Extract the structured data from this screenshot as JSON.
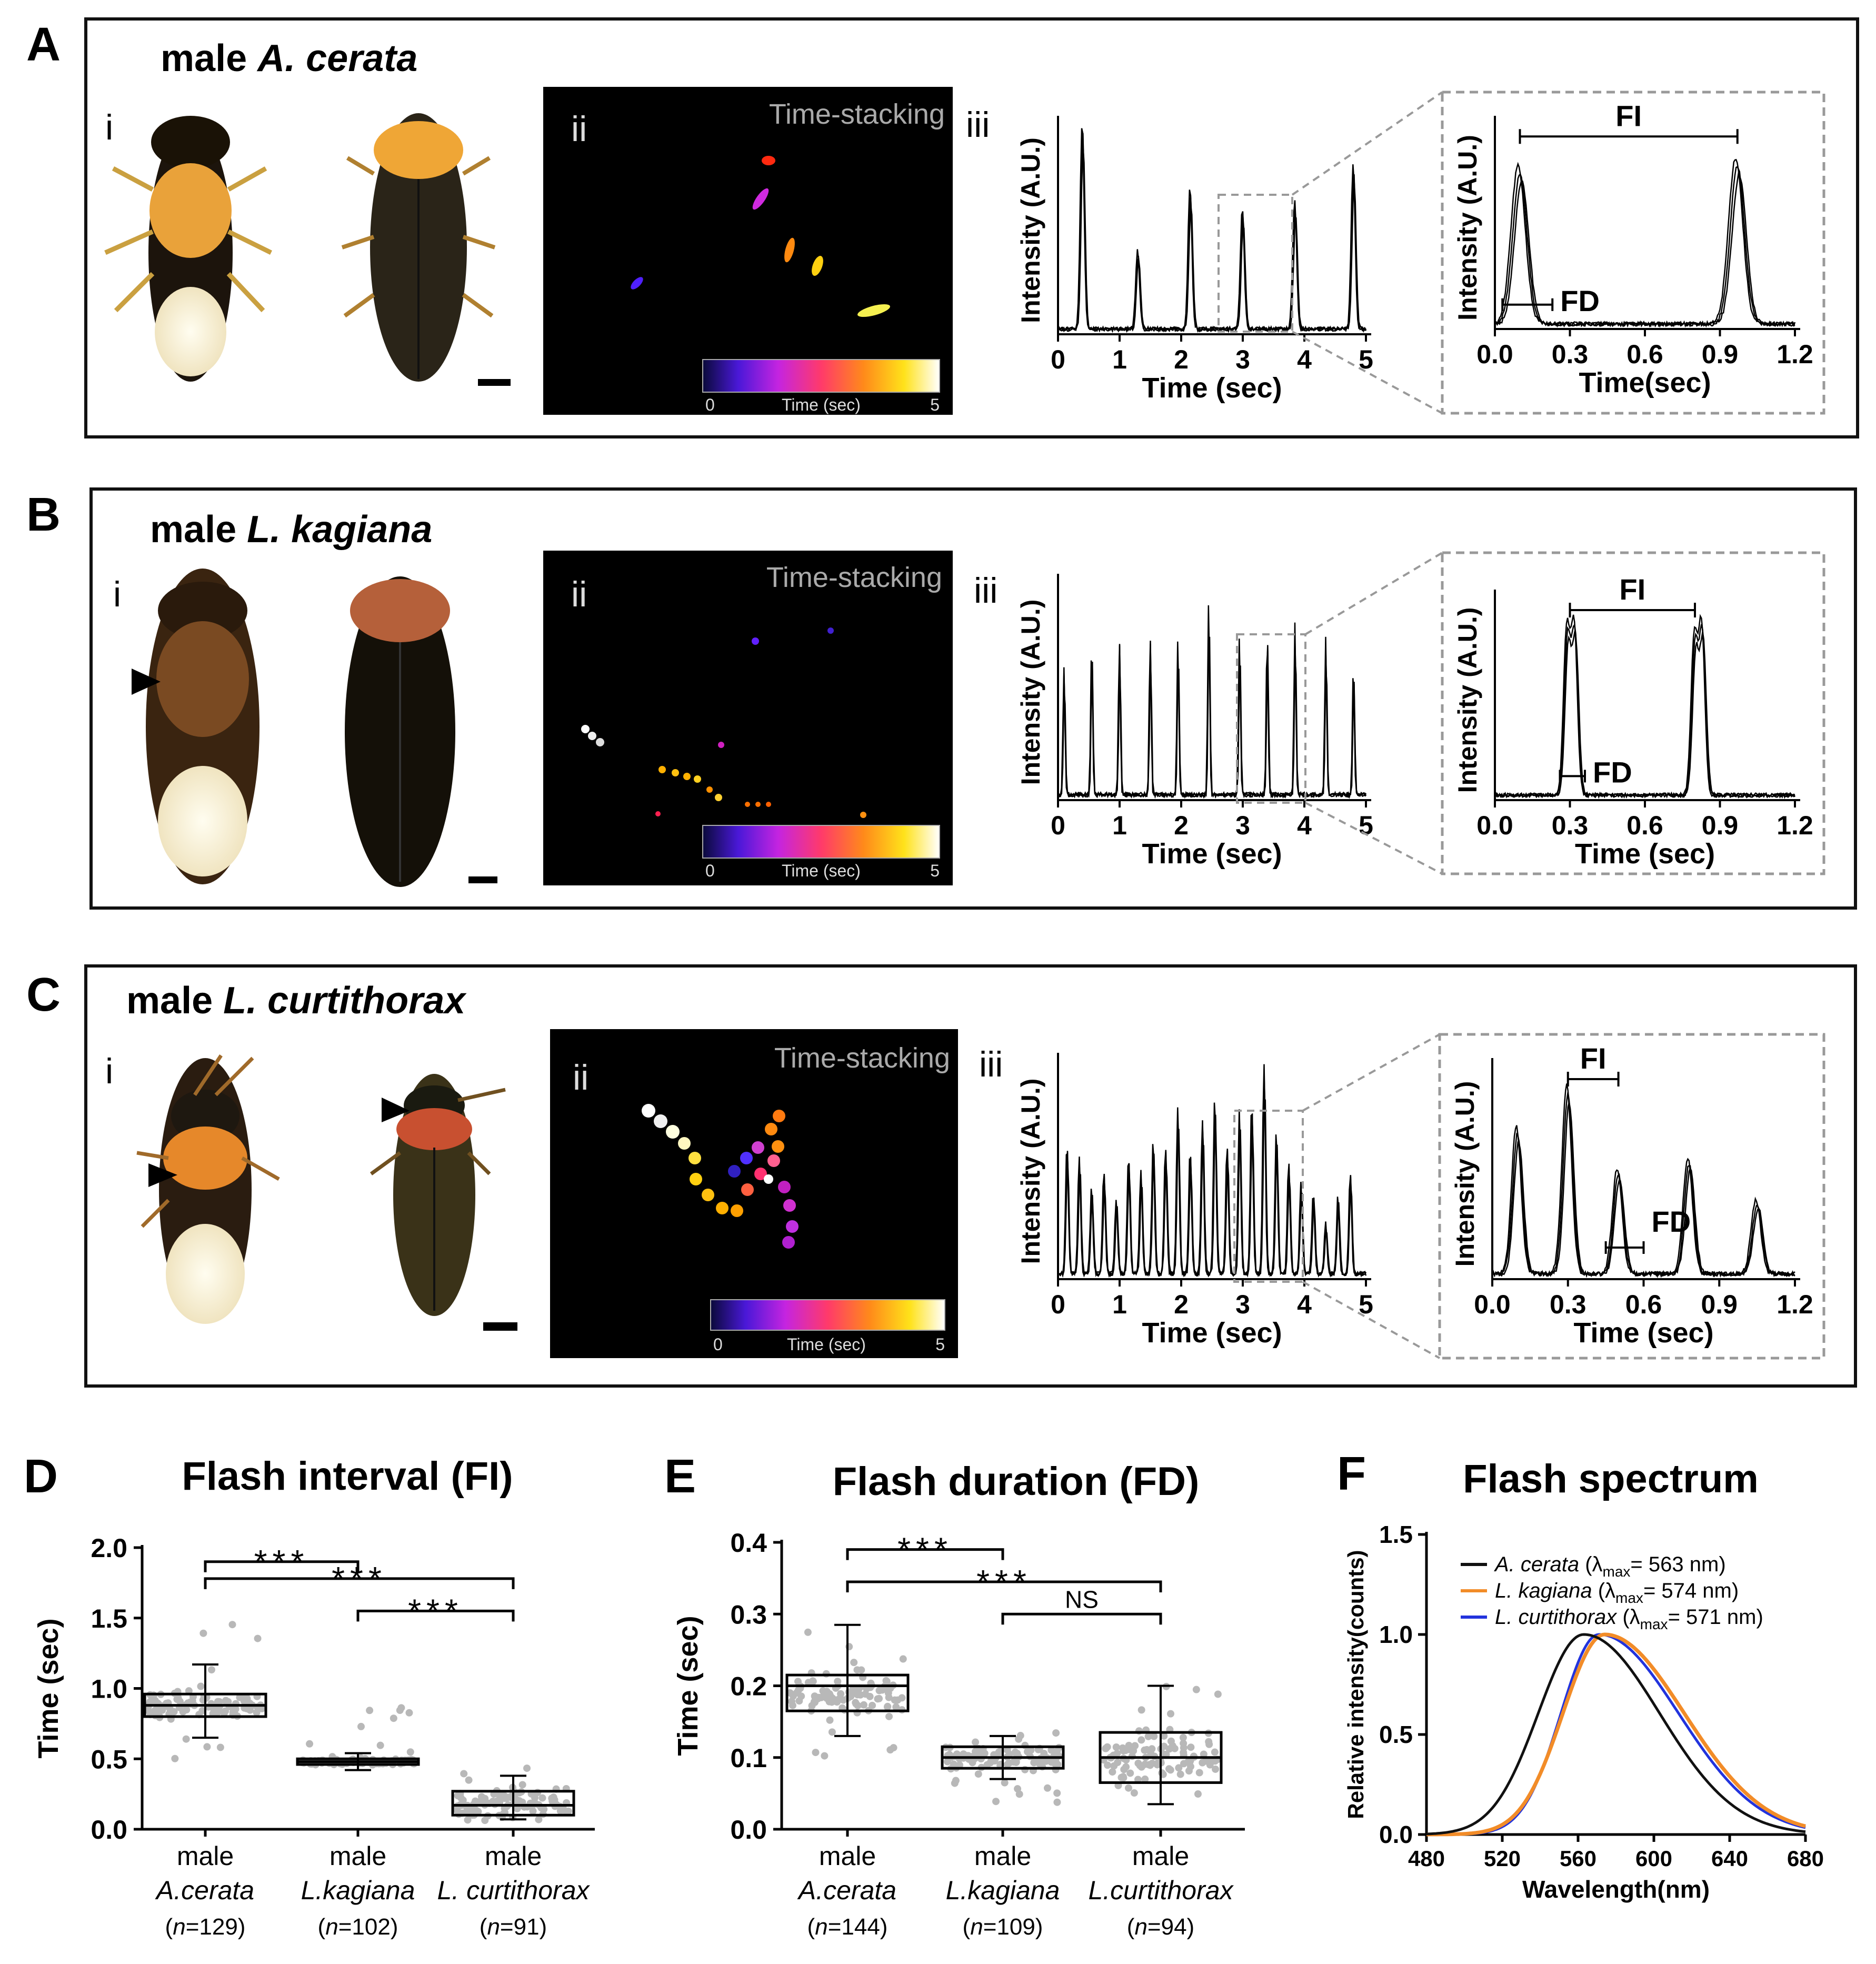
{
  "panels": {
    "A": {
      "letter": "A",
      "title_prefix": "male ",
      "title_species": "A. cerata",
      "label_i": "i",
      "label_ii": "ii",
      "label_iii": "iii",
      "time_stacking": "Time-stacking",
      "colorbar_min": "0",
      "colorbar_max": "5",
      "colorbar_label": "Time (sec)",
      "trace": {
        "ylabel": "Intensity (A.U.)",
        "xlabel": "Time (sec)",
        "xticks": [
          "0",
          "1",
          "2",
          "3",
          "4",
          "5"
        ],
        "peaks": [
          0.4,
          1.3,
          2.15,
          3.0,
          3.85,
          4.8
        ],
        "amps": [
          1.0,
          0.38,
          0.68,
          0.58,
          0.62,
          0.8
        ],
        "width": 0.1
      },
      "zoom": {
        "ylabel": "Intensity (A.U.)",
        "xlabel": "Time(sec)",
        "xticks": [
          "0.0",
          "0.3",
          "0.6",
          "0.9",
          "1.2"
        ],
        "fi": "FI",
        "fd": "FD",
        "peaks": [
          0.1,
          0.97
        ],
        "amps": [
          0.78,
          0.82
        ],
        "width": 0.09
      }
    },
    "B": {
      "letter": "B",
      "title_prefix": "male ",
      "title_species": "L. kagiana",
      "label_i": "i",
      "label_ii": "ii",
      "label_iii": "iii",
      "time_stacking": "Time-stacking",
      "colorbar_min": "0",
      "colorbar_max": "5",
      "colorbar_label": "Time (sec)",
      "trace": {
        "ylabel": "Intensity (A.U.)",
        "xlabel": "Time (sec)",
        "xticks": [
          "0",
          "1",
          "2",
          "3",
          "4",
          "5"
        ],
        "peaks": [
          0.1,
          0.55,
          1.0,
          1.5,
          1.95,
          2.45,
          2.95,
          3.4,
          3.85,
          4.35,
          4.8
        ],
        "amps": [
          0.6,
          0.7,
          0.72,
          0.74,
          0.72,
          0.9,
          0.74,
          0.76,
          0.8,
          0.74,
          0.6
        ],
        "width": 0.05
      },
      "zoom": {
        "ylabel": "Intensity (A.U.)",
        "xlabel": "Time (sec)",
        "xticks": [
          "0.0",
          "0.3",
          "0.6",
          "0.9",
          "1.2"
        ],
        "fi": "FI",
        "fd": "FD",
        "peaks": [
          0.29,
          0.32,
          0.8,
          0.83
        ],
        "amps": [
          0.82,
          0.84,
          0.78,
          0.84
        ],
        "width": 0.04
      }
    },
    "C": {
      "letter": "C",
      "title_prefix": "male ",
      "title_species": "L. curtithorax",
      "label_i": "i",
      "label_ii": "ii",
      "label_iii": "iii",
      "time_stacking": "Time-stacking",
      "colorbar_min": "0",
      "colorbar_max": "5",
      "colorbar_label": "Time (sec)",
      "trace": {
        "ylabel": "Intensity (A.U.)",
        "xlabel": "Time (sec)",
        "xticks": [
          "0",
          "1",
          "2",
          "3",
          "4",
          "5"
        ],
        "peaks": [
          0.15,
          0.35,
          0.55,
          0.75,
          0.95,
          1.15,
          1.35,
          1.55,
          1.75,
          1.95,
          2.15,
          2.35,
          2.55,
          2.75,
          2.95,
          3.15,
          3.35,
          3.55,
          3.75,
          3.95,
          4.15,
          4.35,
          4.55,
          4.75
        ],
        "amps": [
          0.6,
          0.55,
          0.4,
          0.48,
          0.35,
          0.55,
          0.48,
          0.62,
          0.6,
          0.78,
          0.58,
          0.72,
          0.82,
          0.6,
          0.76,
          0.8,
          0.98,
          0.66,
          0.52,
          0.42,
          0.38,
          0.24,
          0.36,
          0.48
        ],
        "width": 0.07
      },
      "zoom": {
        "ylabel": "Intensity (A.U.)",
        "xlabel": "Time (sec)",
        "xticks": [
          "0.0",
          "0.3",
          "0.6",
          "0.9",
          "1.2"
        ],
        "fi": "FI",
        "fd": "FD",
        "peaks": [
          0.1,
          0.3,
          0.5,
          0.78,
          1.05
        ],
        "amps": [
          0.7,
          0.9,
          0.5,
          0.55,
          0.35
        ],
        "width": 0.06
      }
    }
  },
  "chart_data": [
    {
      "type": "box",
      "letter": "D",
      "title": "Flash interval (FI)",
      "ylabel": "Time (sec)",
      "ylim": [
        0,
        2.0
      ],
      "yticks": [
        "0.0",
        "0.5",
        "1.0",
        "1.5",
        "2.0"
      ],
      "groups": [
        {
          "line1": "male",
          "species": "A.cerata",
          "n_prefix": "(",
          "n_var": "n",
          "n_suffix": "=129)",
          "q1": 0.8,
          "median": 0.88,
          "q3": 0.96,
          "whisker_low": 0.65,
          "whisker_high": 1.17,
          "spread_low": 0.5,
          "spread_high": 1.5
        },
        {
          "line1": "male",
          "species": "L.kagiana",
          "n_prefix": "(",
          "n_var": "n",
          "n_suffix": "=102)",
          "q1": 0.46,
          "median": 0.48,
          "q3": 0.5,
          "whisker_low": 0.42,
          "whisker_high": 0.54,
          "spread_low": 0.42,
          "spread_high": 0.98
        },
        {
          "line1": "male",
          "species": "L. curtithorax",
          "n_prefix": "(",
          "n_var": "n",
          "n_suffix": "=91)",
          "q1": 0.1,
          "median": 0.17,
          "q3": 0.27,
          "whisker_low": 0.07,
          "whisker_high": 0.38,
          "spread_low": 0.06,
          "spread_high": 0.45
        }
      ],
      "brackets": [
        {
          "label": "***",
          "from": 0,
          "to": 1,
          "y": 1.9
        },
        {
          "label": "***",
          "from": 0,
          "to": 2,
          "y": 1.78
        },
        {
          "label": "***",
          "from": 1,
          "to": 2,
          "y": 1.55
        }
      ]
    },
    {
      "type": "box",
      "letter": "E",
      "title": "Flash duration (FD)",
      "ylabel": "Time (sec)",
      "ylim": [
        0,
        0.4
      ],
      "yticks": [
        "0.0",
        "0.1",
        "0.2",
        "0.3",
        "0.4"
      ],
      "groups": [
        {
          "line1": "male",
          "species": "A.cerata",
          "n_prefix": "(",
          "n_var": "n",
          "n_suffix": "=144)",
          "q1": 0.165,
          "median": 0.2,
          "q3": 0.215,
          "whisker_low": 0.13,
          "whisker_high": 0.285,
          "spread_low": 0.1,
          "spread_high": 0.3
        },
        {
          "line1": "male",
          "species": "L.kagiana",
          "n_prefix": "(",
          "n_var": "n",
          "n_suffix": "=109)",
          "q1": 0.085,
          "median": 0.1,
          "q3": 0.115,
          "whisker_low": 0.07,
          "whisker_high": 0.13,
          "spread_low": 0.035,
          "spread_high": 0.135
        },
        {
          "line1": "male",
          "species": "L.curtithorax",
          "n_prefix": "(",
          "n_var": "n",
          "n_suffix": "=94)",
          "q1": 0.065,
          "median": 0.1,
          "q3": 0.135,
          "whisker_low": 0.035,
          "whisker_high": 0.2,
          "spread_low": 0.035,
          "spread_high": 0.2
        }
      ],
      "brackets": [
        {
          "label": "***",
          "from": 0,
          "to": 1,
          "y": 0.39
        },
        {
          "label": "***",
          "from": 0,
          "to": 2,
          "y": 0.345
        },
        {
          "label": "NS",
          "from": 1,
          "to": 2,
          "y": 0.3
        }
      ]
    },
    {
      "type": "line",
      "letter": "F",
      "title": "Flash spectrum",
      "xlabel": "Wavelength(nm)",
      "ylabel": "Relative intensity(counts)",
      "xlim": [
        480,
        680
      ],
      "ylim": [
        0,
        1.5
      ],
      "xticks": [
        "480",
        "520",
        "560",
        "600",
        "640",
        "680"
      ],
      "yticks": [
        "0.0",
        "0.5",
        "1.0",
        "1.5"
      ],
      "series": [
        {
          "name": "A. cerata",
          "lmax_label": "max",
          "lmax_value": "= 563 nm)",
          "lambda_max": 563,
          "color": "#111111",
          "sigma_left": 24,
          "sigma_right": 40
        },
        {
          "name": "L. kagiana",
          "lmax_label": "max",
          "lmax_value": "= 574 nm)",
          "lambda_max": 574,
          "color": "#f28c28",
          "sigma_left": 22,
          "sigma_right": 42
        },
        {
          "name": "L. curtithorax",
          "lmax_label": "max",
          "lmax_value": "= 571 nm)",
          "lambda_max": 571,
          "color": "#2233dd",
          "sigma_left": 20,
          "sigma_right": 42
        }
      ]
    }
  ]
}
